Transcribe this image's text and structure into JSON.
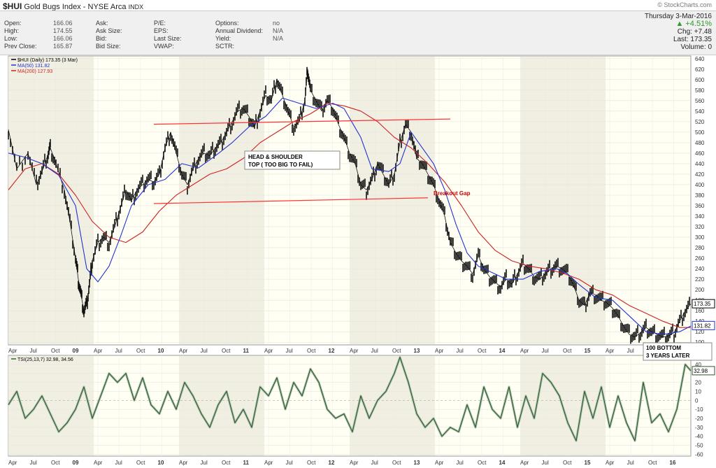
{
  "header": {
    "symbol": "$HUI",
    "name": "Gold Bugs Index - NYSE Arca",
    "unit": "INDX",
    "stockcharts": "© StockCharts.com",
    "date": "Thursday 3-Mar-2016",
    "change_pct": "▲ +4.51%",
    "chg_label": "Chg:",
    "chg_value": "+7.48",
    "last_label": "Last:",
    "last_value": "173.35",
    "volume_label": "Volume:",
    "volume_value": "0",
    "quote_cols": [
      [
        {
          "l": "Open:",
          "v": "166.06"
        },
        {
          "l": "High:",
          "v": "174.55"
        },
        {
          "l": "Low:",
          "v": "166.06"
        },
        {
          "l": "Prev Close:",
          "v": "165.87"
        }
      ],
      [
        {
          "l": "Ask:",
          "v": ""
        },
        {
          "l": "Ask Size:",
          "v": ""
        },
        {
          "l": "Bid:",
          "v": ""
        },
        {
          "l": "Bid Size:",
          "v": ""
        }
      ],
      [
        {
          "l": "P/E:",
          "v": ""
        },
        {
          "l": "EPS:",
          "v": ""
        },
        {
          "l": "Last Size:",
          "v": ""
        },
        {
          "l": "VWAP:",
          "v": ""
        }
      ],
      [
        {
          "l": "Options:",
          "v": "no"
        },
        {
          "l": "Annual Dividend:",
          "v": "N/A"
        },
        {
          "l": "Yield:",
          "v": "N/A"
        },
        {
          "l": "SCTR:",
          "v": ""
        }
      ]
    ]
  },
  "chart_data": [
    {
      "type": "line",
      "legend": {
        "position": "top-left",
        "entries": [
          {
            "label": "$HUI (Daily) 173.35 (3 Mar)",
            "color": "#000000"
          },
          {
            "label": "MA(50) 131.82",
            "color": "#2233cc"
          },
          {
            "label": "MA(200) 127.93",
            "color": "#cc2222"
          }
        ]
      },
      "x_ticks": [
        "Apr",
        "Jul",
        "Oct",
        "09",
        "Apr",
        "Jul",
        "Oct",
        "10",
        "Apr",
        "Jul",
        "Oct",
        "11",
        "Apr",
        "Jul",
        "Oct",
        "12",
        "Apr",
        "Jul",
        "Oct",
        "13",
        "Apr",
        "Jul",
        "Oct",
        "14",
        "Apr",
        "Jul",
        "Oct",
        "15",
        "Apr",
        "Jul",
        "Oct",
        "16"
      ],
      "y_ticks": [
        100,
        120,
        140,
        160,
        180,
        200,
        220,
        240,
        260,
        280,
        300,
        320,
        340,
        360,
        380,
        400,
        420,
        440,
        460,
        480,
        500,
        520,
        540,
        560,
        580,
        600,
        620,
        640
      ],
      "ylim": [
        95,
        645
      ],
      "last_label": "173.35",
      "ma_label": "131.82",
      "price": [
        [
          0,
          505
        ],
        [
          3,
          430
        ],
        [
          7,
          460
        ],
        [
          10,
          400
        ],
        [
          12,
          425
        ],
        [
          14,
          455
        ],
        [
          15,
          470
        ],
        [
          17,
          440
        ],
        [
          20,
          390
        ],
        [
          22,
          330
        ],
        [
          24,
          260
        ],
        [
          25,
          220
        ],
        [
          26,
          190
        ],
        [
          27,
          160
        ],
        [
          28,
          170
        ],
        [
          29,
          210
        ],
        [
          30,
          255
        ],
        [
          32,
          290
        ],
        [
          34,
          300
        ],
        [
          36,
          290
        ],
        [
          38,
          320
        ],
        [
          40,
          355
        ],
        [
          42,
          390
        ],
        [
          44,
          370
        ],
        [
          46,
          390
        ],
        [
          48,
          400
        ],
        [
          50,
          410
        ],
        [
          52,
          405
        ],
        [
          54,
          420
        ],
        [
          56,
          470
        ],
        [
          58,
          500
        ],
        [
          60,
          460
        ],
        [
          62,
          420
        ],
        [
          64,
          400
        ],
        [
          66,
          430
        ],
        [
          68,
          450
        ],
        [
          70,
          460
        ],
        [
          72,
          455
        ],
        [
          74,
          470
        ],
        [
          76,
          480
        ],
        [
          78,
          500
        ],
        [
          80,
          520
        ],
        [
          82,
          540
        ],
        [
          84,
          545
        ],
        [
          86,
          530
        ],
        [
          88,
          510
        ],
        [
          90,
          540
        ],
        [
          92,
          570
        ],
        [
          94,
          560
        ],
        [
          96,
          600
        ],
        [
          98,
          570
        ],
        [
          100,
          540
        ],
        [
          102,
          510
        ],
        [
          104,
          520
        ],
        [
          106,
          560
        ],
        [
          107,
          620
        ],
        [
          108,
          580
        ],
        [
          110,
          560
        ],
        [
          112,
          540
        ],
        [
          114,
          560
        ],
        [
          116,
          545
        ],
        [
          118,
          515
        ],
        [
          120,
          490
        ],
        [
          122,
          460
        ],
        [
          124,
          440
        ],
        [
          126,
          400
        ],
        [
          128,
          390
        ],
        [
          130,
          410
        ],
        [
          132,
          440
        ],
        [
          134,
          420
        ],
        [
          136,
          400
        ],
        [
          138,
          420
        ],
        [
          140,
          480
        ],
        [
          142,
          515
        ],
        [
          144,
          500
        ],
        [
          146,
          450
        ],
        [
          148,
          440
        ],
        [
          150,
          420
        ],
        [
          152,
          400
        ],
        [
          154,
          370
        ],
        [
          156,
          340
        ],
        [
          158,
          290
        ],
        [
          160,
          270
        ],
        [
          162,
          255
        ],
        [
          164,
          245
        ],
        [
          166,
          230
        ],
        [
          168,
          265
        ],
        [
          170,
          240
        ],
        [
          172,
          225
        ],
        [
          174,
          215
        ],
        [
          176,
          205
        ],
        [
          178,
          220
        ],
        [
          180,
          210
        ],
        [
          182,
          230
        ],
        [
          184,
          250
        ],
        [
          186,
          240
        ],
        [
          188,
          225
        ],
        [
          190,
          220
        ],
        [
          192,
          230
        ],
        [
          194,
          240
        ],
        [
          196,
          245
        ],
        [
          198,
          240
        ],
        [
          200,
          230
        ],
        [
          202,
          210
        ],
        [
          204,
          180
        ],
        [
          206,
          170
        ],
        [
          208,
          195
        ],
        [
          210,
          190
        ],
        [
          212,
          180
        ],
        [
          214,
          175
        ],
        [
          216,
          165
        ],
        [
          218,
          150
        ],
        [
          220,
          130
        ],
        [
          222,
          115
        ],
        [
          224,
          110
        ],
        [
          226,
          118
        ],
        [
          228,
          128
        ],
        [
          230,
          120
        ],
        [
          232,
          115
        ],
        [
          234,
          110
        ],
        [
          236,
          112
        ],
        [
          238,
          118
        ],
        [
          240,
          140
        ],
        [
          242,
          160
        ],
        [
          244,
          173
        ]
      ],
      "ma50": [
        [
          0,
          460
        ],
        [
          6,
          452
        ],
        [
          12,
          440
        ],
        [
          18,
          418
        ],
        [
          24,
          360
        ],
        [
          28,
          240
        ],
        [
          32,
          215
        ],
        [
          36,
          245
        ],
        [
          40,
          300
        ],
        [
          44,
          360
        ],
        [
          50,
          400
        ],
        [
          56,
          410
        ],
        [
          62,
          440
        ],
        [
          68,
          432
        ],
        [
          74,
          455
        ],
        [
          80,
          480
        ],
        [
          86,
          510
        ],
        [
          92,
          530
        ],
        [
          98,
          565
        ],
        [
          104,
          555
        ],
        [
          110,
          545
        ],
        [
          116,
          555
        ],
        [
          120,
          545
        ],
        [
          126,
          490
        ],
        [
          130,
          430
        ],
        [
          136,
          425
        ],
        [
          140,
          440
        ],
        [
          144,
          500
        ],
        [
          148,
          470
        ],
        [
          152,
          440
        ],
        [
          156,
          390
        ],
        [
          160,
          325
        ],
        [
          164,
          270
        ],
        [
          168,
          245
        ],
        [
          172,
          235
        ],
        [
          178,
          220
        ],
        [
          184,
          220
        ],
        [
          190,
          235
        ],
        [
          196,
          240
        ],
        [
          200,
          230
        ],
        [
          204,
          210
        ],
        [
          210,
          185
        ],
        [
          216,
          180
        ],
        [
          222,
          150
        ],
        [
          228,
          120
        ],
        [
          234,
          115
        ],
        [
          240,
          120
        ],
        [
          244,
          131
        ]
      ],
      "ma200": [
        [
          0,
          390
        ],
        [
          6,
          430
        ],
        [
          12,
          440
        ],
        [
          18,
          420
        ],
        [
          24,
          380
        ],
        [
          30,
          330
        ],
        [
          36,
          300
        ],
        [
          42,
          290
        ],
        [
          48,
          310
        ],
        [
          54,
          350
        ],
        [
          60,
          380
        ],
        [
          66,
          400
        ],
        [
          72,
          420
        ],
        [
          78,
          430
        ],
        [
          84,
          450
        ],
        [
          90,
          480
        ],
        [
          96,
          500
        ],
        [
          102,
          520
        ],
        [
          108,
          535
        ],
        [
          114,
          555
        ],
        [
          120,
          550
        ],
        [
          126,
          540
        ],
        [
          132,
          520
        ],
        [
          138,
          490
        ],
        [
          144,
          470
        ],
        [
          150,
          440
        ],
        [
          156,
          405
        ],
        [
          162,
          360
        ],
        [
          168,
          310
        ],
        [
          174,
          275
        ],
        [
          180,
          255
        ],
        [
          186,
          245
        ],
        [
          192,
          240
        ],
        [
          198,
          232
        ],
        [
          204,
          220
        ],
        [
          210,
          200
        ],
        [
          216,
          190
        ],
        [
          222,
          170
        ],
        [
          228,
          155
        ],
        [
          234,
          140
        ],
        [
          240,
          128
        ],
        [
          244,
          128
        ]
      ],
      "trendlines": [
        {
          "from": [
            52,
            515
          ],
          "to": [
            158,
            525
          ],
          "color": "#ff3333"
        },
        {
          "from": [
            52,
            364
          ],
          "to": [
            150,
            375
          ],
          "color": "#ff3333"
        }
      ],
      "annotations": [
        {
          "text": "HEAD & SHOULDER",
          "text2": "TOP ( TOO BIG TO FAIL)",
          "boxed": true
        },
        {
          "text": "Breakout Gap",
          "color": "#cc0000"
        },
        {
          "text": "100 BOTTOM",
          "text2": "3 YEARS LATER",
          "boxed": true
        }
      ]
    },
    {
      "type": "line",
      "legend": {
        "position": "top-left",
        "entries": [
          {
            "label": "TSI(25,13,7) 32.98, 34.56",
            "color": "#336633"
          }
        ]
      },
      "y_ticks": [
        -60,
        -50,
        -40,
        -30,
        -20,
        -10,
        0,
        10,
        20,
        30,
        40
      ],
      "ylim": [
        -62,
        50
      ],
      "last_label": "32.98",
      "tsi": [
        [
          0,
          -5
        ],
        [
          3,
          10
        ],
        [
          6,
          -20
        ],
        [
          9,
          -10
        ],
        [
          12,
          5
        ],
        [
          15,
          -15
        ],
        [
          18,
          -35
        ],
        [
          21,
          -25
        ],
        [
          24,
          -10
        ],
        [
          27,
          15
        ],
        [
          30,
          -20
        ],
        [
          33,
          5
        ],
        [
          36,
          30
        ],
        [
          39,
          20
        ],
        [
          42,
          30
        ],
        [
          45,
          0
        ],
        [
          48,
          25
        ],
        [
          51,
          -5
        ],
        [
          54,
          -15
        ],
        [
          57,
          10
        ],
        [
          60,
          -10
        ],
        [
          63,
          20
        ],
        [
          66,
          5
        ],
        [
          69,
          -15
        ],
        [
          72,
          -30
        ],
        [
          75,
          -5
        ],
        [
          78,
          10
        ],
        [
          81,
          -25
        ],
        [
          84,
          -10
        ],
        [
          87,
          -30
        ],
        [
          90,
          15
        ],
        [
          93,
          5
        ],
        [
          96,
          25
        ],
        [
          99,
          -10
        ],
        [
          102,
          20
        ],
        [
          105,
          5
        ],
        [
          108,
          35
        ],
        [
          111,
          20
        ],
        [
          114,
          -10
        ],
        [
          117,
          -20
        ],
        [
          120,
          -15
        ],
        [
          123,
          -35
        ],
        [
          126,
          5
        ],
        [
          129,
          -20
        ],
        [
          132,
          0
        ],
        [
          135,
          10
        ],
        [
          138,
          30
        ],
        [
          140,
          48
        ],
        [
          143,
          20
        ],
        [
          146,
          -15
        ],
        [
          149,
          -30
        ],
        [
          152,
          -20
        ],
        [
          155,
          -40
        ],
        [
          158,
          -30
        ],
        [
          161,
          -35
        ],
        [
          164,
          -5
        ],
        [
          167,
          -30
        ],
        [
          170,
          15
        ],
        [
          173,
          -10
        ],
        [
          176,
          -20
        ],
        [
          179,
          15
        ],
        [
          182,
          -30
        ],
        [
          185,
          5
        ],
        [
          188,
          -20
        ],
        [
          191,
          30
        ],
        [
          194,
          20
        ],
        [
          197,
          5
        ],
        [
          200,
          -25
        ],
        [
          203,
          -45
        ],
        [
          206,
          10
        ],
        [
          209,
          -20
        ],
        [
          212,
          15
        ],
        [
          215,
          -30
        ],
        [
          218,
          5
        ],
        [
          221,
          -25
        ],
        [
          224,
          -45
        ],
        [
          227,
          20
        ],
        [
          230,
          -25
        ],
        [
          233,
          -15
        ],
        [
          236,
          -35
        ],
        [
          239,
          -10
        ],
        [
          242,
          40
        ],
        [
          244,
          33
        ]
      ]
    }
  ]
}
